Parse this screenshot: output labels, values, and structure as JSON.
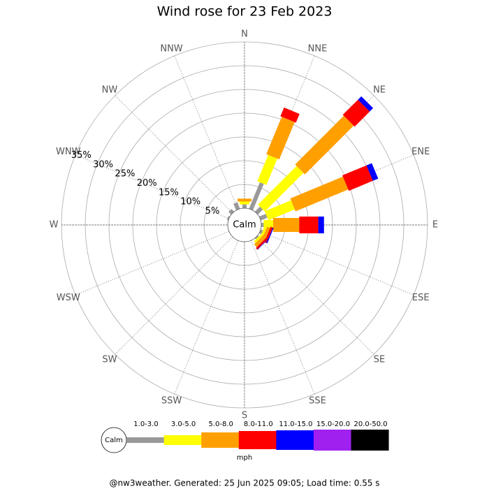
{
  "chart_data": {
    "type": "windrose",
    "title": "Wind rose for 23 Feb 2023",
    "directions": [
      "N",
      "NNE",
      "NE",
      "ENE",
      "E",
      "ESE",
      "SE",
      "SSE",
      "S",
      "SSW",
      "SW",
      "WSW",
      "W",
      "WNW",
      "NW",
      "NNW"
    ],
    "series": [
      {
        "name": "1.0-3.0",
        "color": "#999999",
        "values": [
          0.8,
          6,
          1.5,
          1.5,
          0.5,
          0.5,
          0.3,
          0,
          0,
          0,
          0,
          0,
          0,
          0.3,
          0.8,
          1.5
        ]
      },
      {
        "name": "3.0-5.0",
        "color": "#ffff00",
        "values": [
          0.6,
          6,
          11.5,
          6,
          2,
          0.5,
          0.5,
          0,
          0,
          0,
          0,
          0,
          0,
          0,
          0,
          0
        ]
      },
      {
        "name": "5.0-8.0",
        "color": "#ffa000",
        "values": [
          0.6,
          8.5,
          14.5,
          12,
          5.5,
          0.7,
          0.8,
          0,
          0,
          0,
          0,
          0,
          0,
          0,
          0,
          0
        ]
      },
      {
        "name": "8.0-11.0",
        "color": "#ff0000",
        "values": [
          0,
          2,
          4.5,
          5.5,
          4,
          0.5,
          0.4,
          0,
          0,
          0,
          0,
          0,
          0,
          0,
          0,
          0
        ]
      },
      {
        "name": "11.0-15.0",
        "color": "#0000ff",
        "values": [
          0,
          0,
          1,
          1.2,
          1.2,
          0.2,
          0.1,
          0,
          0,
          0,
          0,
          0,
          0,
          0,
          0,
          0
        ]
      },
      {
        "name": "15.0-20.0",
        "color": "#a020f0",
        "values": [
          0,
          0,
          0,
          0,
          0,
          0,
          0,
          0,
          0,
          0,
          0,
          0,
          0,
          0,
          0,
          0
        ]
      },
      {
        "name": "20.0-50.0",
        "color": "#000000",
        "values": [
          0,
          0,
          0,
          0,
          0,
          0,
          0,
          0,
          0,
          0,
          0,
          0,
          0,
          0,
          0,
          0
        ]
      }
    ],
    "rlim": [
      0,
      35
    ],
    "rticks": [
      {
        "value": 5,
        "label": "5%"
      },
      {
        "value": 10,
        "label": "10%"
      },
      {
        "value": 15,
        "label": "15%"
      },
      {
        "value": 20,
        "label": "20%"
      },
      {
        "value": 25,
        "label": "25%"
      },
      {
        "value": 30,
        "label": "30%"
      },
      {
        "value": 35,
        "label": "35%"
      }
    ],
    "calm_label": "Calm",
    "unit": "mph"
  },
  "footer": "@nw3weather. Generated: 25 Jun 2025 09:05; Load time: 0.55 s"
}
